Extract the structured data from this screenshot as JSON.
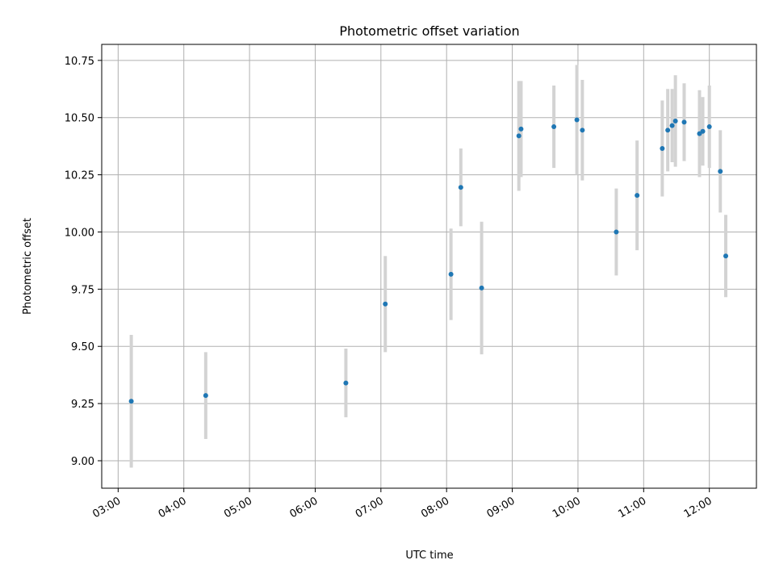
{
  "chart_data": {
    "type": "scatter",
    "title": "Photometric offset variation",
    "xlabel": "UTC time",
    "ylabel": "Photometric offset",
    "x_ticks": [
      "03:00",
      "04:00",
      "05:00",
      "06:00",
      "07:00",
      "08:00",
      "09:00",
      "10:00",
      "11:00",
      "12:00"
    ],
    "y_ticks": [
      "9.00",
      "9.25",
      "9.50",
      "9.75",
      "10.00",
      "10.25",
      "10.50",
      "10.75"
    ],
    "xlim": [
      "02:45",
      "12:43"
    ],
    "ylim": [
      8.88,
      10.82
    ],
    "grid": true,
    "legend": "none",
    "colors": {
      "point": "#1f77b4",
      "errorbar": "#d3d3d3",
      "grid": "#b0b0b0"
    },
    "series": [
      {
        "points": [
          {
            "x": "03:12",
            "y": 9.26,
            "err": 0.29
          },
          {
            "x": "04:20",
            "y": 9.285,
            "err": 0.19
          },
          {
            "x": "06:28",
            "y": 9.34,
            "err": 0.15
          },
          {
            "x": "07:04",
            "y": 9.685,
            "err": 0.21
          },
          {
            "x": "08:04",
            "y": 9.815,
            "err": 0.2
          },
          {
            "x": "08:13",
            "y": 10.195,
            "err": 0.17
          },
          {
            "x": "08:32",
            "y": 9.755,
            "err": 0.29
          },
          {
            "x": "09:06",
            "y": 10.42,
            "err": 0.24
          },
          {
            "x": "09:08",
            "y": 10.45,
            "err": 0.21
          },
          {
            "x": "09:38",
            "y": 10.46,
            "err": 0.18
          },
          {
            "x": "09:59",
            "y": 10.49,
            "err": 0.24
          },
          {
            "x": "10:04",
            "y": 10.445,
            "err": 0.22
          },
          {
            "x": "10:35",
            "y": 10.0,
            "err": 0.19
          },
          {
            "x": "10:54",
            "y": 10.16,
            "err": 0.24
          },
          {
            "x": "11:17",
            "y": 10.365,
            "err": 0.21
          },
          {
            "x": "11:22",
            "y": 10.445,
            "err": 0.18
          },
          {
            "x": "11:26",
            "y": 10.465,
            "err": 0.16
          },
          {
            "x": "11:29",
            "y": 10.485,
            "err": 0.2
          },
          {
            "x": "11:37",
            "y": 10.48,
            "err": 0.17
          },
          {
            "x": "11:51",
            "y": 10.43,
            "err": 0.19
          },
          {
            "x": "11:54",
            "y": 10.44,
            "err": 0.15
          },
          {
            "x": "12:00",
            "y": 10.46,
            "err": 0.18
          },
          {
            "x": "12:10",
            "y": 10.265,
            "err": 0.18
          },
          {
            "x": "12:15",
            "y": 9.895,
            "err": 0.18
          }
        ]
      }
    ]
  }
}
